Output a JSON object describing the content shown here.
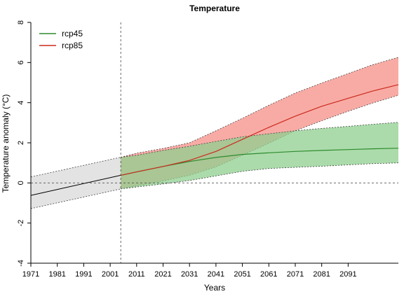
{
  "chart_data": {
    "type": "line",
    "title": "Temperature",
    "xlabel": "Years",
    "ylabel": "Temperature anomaly (°C)",
    "xlim": [
      1971,
      2110
    ],
    "ylim": [
      -4,
      8
    ],
    "xticks": [
      1971,
      1981,
      1991,
      2001,
      2011,
      2021,
      2031,
      2041,
      2051,
      2061,
      2071,
      2081,
      2091
    ],
    "yticks": [
      -4,
      -2,
      0,
      2,
      4,
      6,
      8
    ],
    "reference_lines": {
      "horizontal_y": 0,
      "vertical_x": 2005
    },
    "legend": {
      "position": "top-left",
      "entries": [
        "rcp45",
        "rcp85"
      ]
    },
    "historical": {
      "color": "#000000",
      "band_color": "#d9d9d9",
      "x": [
        1971,
        2005
      ],
      "mean": [
        -0.62,
        0.38
      ],
      "lower": [
        -1.28,
        -0.3
      ],
      "upper": [
        0.3,
        1.28
      ]
    },
    "series": [
      {
        "name": "rcp45",
        "color": "#2e8b2e",
        "band_color": "#8fcf8f",
        "x": [
          2005,
          2011,
          2021,
          2031,
          2041,
          2051,
          2061,
          2071,
          2081,
          2091,
          2100,
          2110
        ],
        "mean": [
          0.38,
          0.55,
          0.82,
          1.07,
          1.27,
          1.42,
          1.5,
          1.57,
          1.62,
          1.66,
          1.7,
          1.73
        ],
        "lower": [
          -0.3,
          -0.2,
          -0.05,
          0.12,
          0.35,
          0.58,
          0.72,
          0.78,
          0.83,
          0.9,
          0.96,
          1.0
        ],
        "upper": [
          1.28,
          1.38,
          1.62,
          1.83,
          2.07,
          2.3,
          2.45,
          2.6,
          2.72,
          2.82,
          2.92,
          3.02
        ]
      },
      {
        "name": "rcp85",
        "color": "#cc2a1e",
        "band_color": "#f58f87",
        "x": [
          2005,
          2011,
          2021,
          2031,
          2041,
          2051,
          2061,
          2071,
          2081,
          2091,
          2100,
          2110
        ],
        "mean": [
          0.38,
          0.55,
          0.82,
          1.12,
          1.57,
          2.17,
          2.77,
          3.33,
          3.82,
          4.22,
          4.57,
          4.9
        ],
        "lower": [
          -0.3,
          -0.15,
          0.1,
          0.38,
          0.8,
          1.38,
          1.98,
          2.6,
          3.1,
          3.57,
          3.97,
          4.37
        ],
        "upper": [
          1.28,
          1.48,
          1.72,
          2.0,
          2.6,
          3.22,
          3.87,
          4.48,
          4.98,
          5.45,
          5.88,
          6.26
        ]
      }
    ]
  }
}
